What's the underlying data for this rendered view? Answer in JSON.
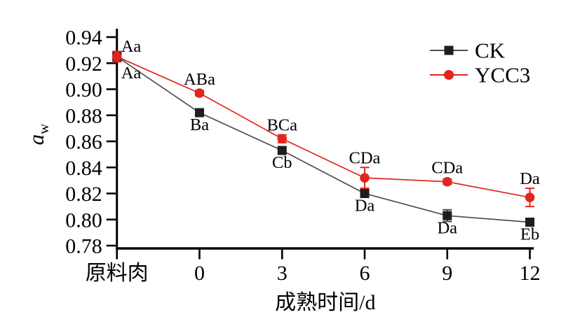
{
  "chart_data": {
    "type": "line",
    "title": "",
    "xlabel": "成熟时间/d",
    "ylabel": {
      "main": "a",
      "sub": "w"
    },
    "categories": [
      "原料肉",
      "0",
      "3",
      "6",
      "9",
      "12"
    ],
    "ylim": [
      0.78,
      0.94
    ],
    "ytick_step": 0.02,
    "ytick_labels": [
      "0.94",
      "0.92",
      "0.90",
      "0.88",
      "0.86",
      "0.84",
      "0.82",
      "0.80",
      "0.78"
    ],
    "grid": false,
    "legend_position": "top-right-inside",
    "colors": {
      "ck_line": "#4f4f4f",
      "ck_marker": "#221c1c",
      "ycc3": "#e2261d",
      "axis": "#000000",
      "text": "#000000",
      "background": "#ffffff"
    },
    "series": [
      {
        "name": "CK",
        "marker": "square",
        "line_color": "#4f4f4f",
        "marker_color": "#221c1c",
        "values": [
          0.925,
          0.882,
          0.853,
          0.82,
          0.803,
          0.798
        ],
        "errors": [
          0.002,
          0.002,
          0.002,
          0.003,
          0.0045,
          0.002
        ],
        "point_labels": [
          "Aa",
          "Ba",
          "Cb",
          "Da",
          "Da",
          "Eb"
        ],
        "label_side": "below"
      },
      {
        "name": "YCC3",
        "marker": "circle",
        "line_color": "#e2261d",
        "marker_color": "#e2261d",
        "values": [
          0.925,
          0.897,
          0.862,
          0.832,
          0.829,
          0.817
        ],
        "errors": [
          0.004,
          0.002,
          0.003,
          0.008,
          0.002,
          0.007
        ],
        "point_labels": [
          "Aa",
          "ABa",
          "BCa",
          "CDa",
          "CDa",
          "Da"
        ],
        "label_side": "above"
      }
    ]
  }
}
